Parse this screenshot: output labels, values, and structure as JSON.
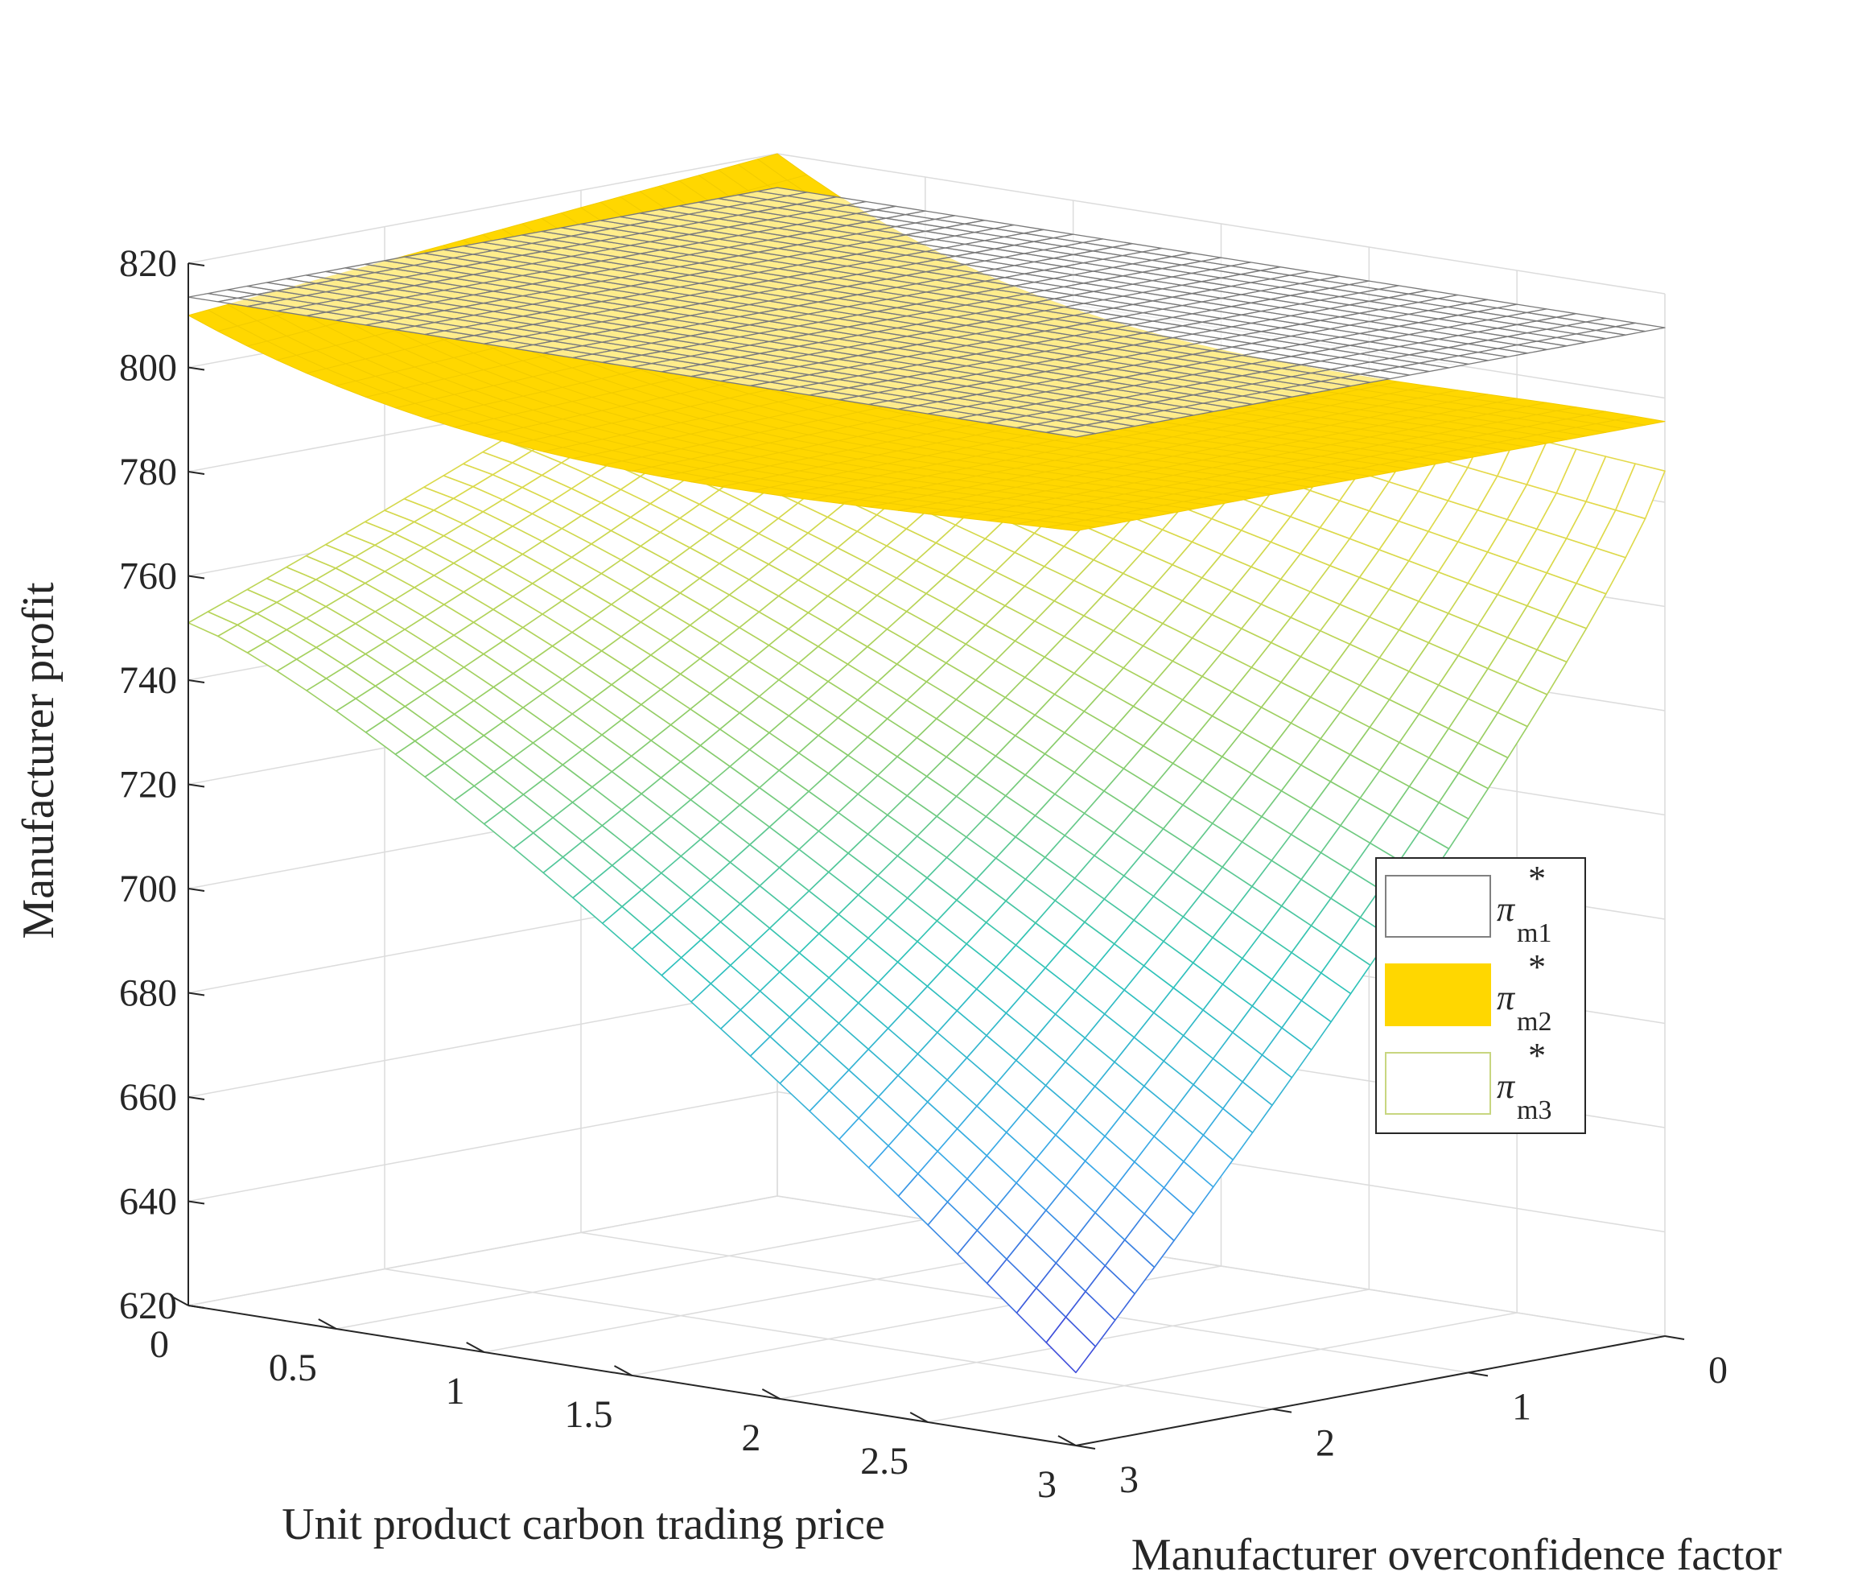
{
  "chart_data": {
    "type": "surface3d",
    "title": "",
    "xlabel": "Unit product carbon trading price",
    "ylabel": "Manufacturer overconfidence factor",
    "zlabel": "Manufacturer profit",
    "xlim": [
      0,
      3
    ],
    "ylim": [
      0,
      3
    ],
    "zlim": [
      620,
      820
    ],
    "x_ticks": [
      "0",
      "0.5",
      "1",
      "1.5",
      "2",
      "2.5",
      "3"
    ],
    "y_ticks": [
      "0",
      "1",
      "2",
      "3"
    ],
    "z_ticks": [
      "620",
      "640",
      "660",
      "680",
      "700",
      "720",
      "740",
      "760",
      "780",
      "800",
      "820"
    ],
    "grid": true,
    "legend_position": "right",
    "mesh_resolution": 31,
    "series": [
      {
        "name": "π*m1",
        "symbol": "π",
        "superscript": "*",
        "subscript": "m1",
        "style": "wireframe",
        "color": "#808080",
        "fill": "#ffffff",
        "description_values": {
          "constant_profit": 813.5
        }
      },
      {
        "name": "π*m2",
        "symbol": "π",
        "superscript": "*",
        "subscript": "m2",
        "style": "filled",
        "color": "#ffd700",
        "corner_values": {
          "x0_y0": 820,
          "x3_y0": 795.5,
          "x0_y3": 810,
          "x3_y3": 795.5
        },
        "min_value": 786
      },
      {
        "name": "π*m3",
        "symbol": "π",
        "superscript": "*",
        "subscript": "m3",
        "style": "wireframe-colormap",
        "color": "#c8d680",
        "corner_values": {
          "x0_y0": 801,
          "x3_y0": 786,
          "x0_y3": 751,
          "x3_y3": 634
        }
      }
    ],
    "colormap": [
      "#3f3fd8",
      "#3aa8e8",
      "#2fc3b8",
      "#8dcd6a",
      "#d9d94a",
      "#f0d84a"
    ]
  }
}
